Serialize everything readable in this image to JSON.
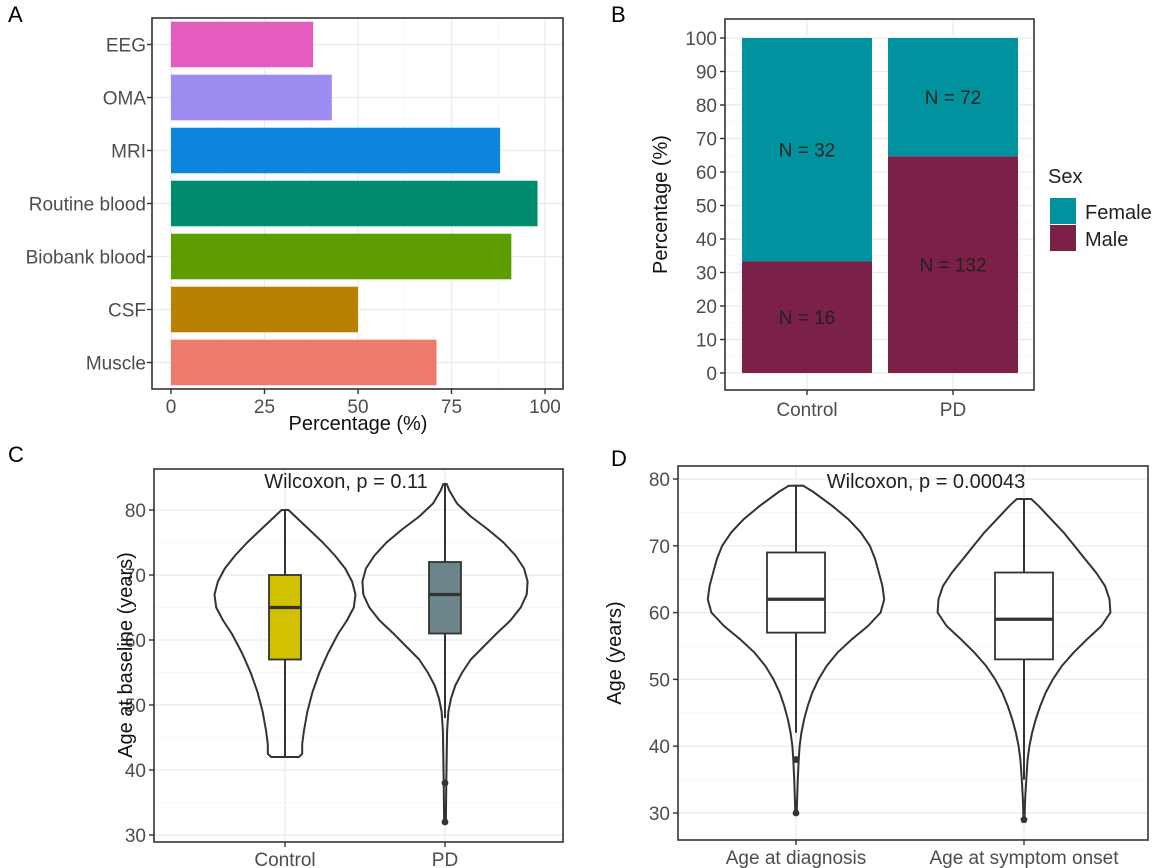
{
  "panels": {
    "A": {
      "letter": "A"
    },
    "B": {
      "letter": "B"
    },
    "C": {
      "letter": "C"
    },
    "D": {
      "letter": "D"
    }
  },
  "chart_data": [
    {
      "panel": "A",
      "type": "bar",
      "orientation": "horizontal",
      "categories": [
        "EEG",
        "OMA",
        "MRI",
        "Routine blood",
        "Biobank blood",
        "CSF",
        "Muscle"
      ],
      "values": [
        38,
        43,
        88,
        98,
        91,
        50,
        71
      ],
      "colors": [
        "#E55CBE",
        "#9E8BF2",
        "#0C85DD",
        "#008C6E",
        "#5E9D00",
        "#B88200",
        "#EE7A6C"
      ],
      "xlabel": "Percentage (%)",
      "ylabel": "",
      "xlim": [
        0,
        100
      ],
      "xticks": [
        0,
        25,
        50,
        75,
        100
      ],
      "grid": true
    },
    {
      "panel": "B",
      "type": "bar",
      "stacked": true,
      "categories": [
        "Control",
        "PD"
      ],
      "series": [
        {
          "name": "Male",
          "values": [
            33.3,
            64.7
          ],
          "color": "#7B2046",
          "labels": [
            "N = 16",
            "N = 132"
          ]
        },
        {
          "name": "Female",
          "values": [
            66.7,
            35.3
          ],
          "color": "#00929F",
          "labels": [
            "N = 32",
            "N = 72"
          ]
        }
      ],
      "xlabel": "",
      "ylabel": "Percentage (%)",
      "ylim": [
        0,
        100
      ],
      "yticks": [
        0,
        10,
        20,
        30,
        40,
        50,
        60,
        70,
        80,
        90,
        100
      ],
      "legend": {
        "title": "Sex",
        "entries": [
          "Female",
          "Male"
        ],
        "position": "right"
      },
      "grid": true
    },
    {
      "panel": "C",
      "type": "violin",
      "categories": [
        "Control",
        "PD"
      ],
      "groups": [
        {
          "name": "Control",
          "min": 42,
          "q1": 57,
          "median": 65,
          "q3": 70,
          "max": 80,
          "outliers": [],
          "fill": "#D2C100"
        },
        {
          "name": "PD",
          "min": 48,
          "q1": 61,
          "median": 67,
          "q3": 72,
          "max": 84,
          "outliers": [
            38,
            32
          ],
          "fill": "#6B858B"
        }
      ],
      "annotation": "Wilcoxon, p = 0.11",
      "xlabel": "",
      "ylabel": "Age at baseline (years)",
      "ylim": [
        30,
        85
      ],
      "yticks": [
        30,
        40,
        50,
        60,
        70,
        80
      ],
      "grid": true
    },
    {
      "panel": "D",
      "type": "violin",
      "categories": [
        "Age at diagnosis",
        "Age at symptom onset"
      ],
      "groups": [
        {
          "name": "Age at diagnosis",
          "min": 42,
          "q1": 57,
          "median": 62,
          "q3": 69,
          "max": 79,
          "outliers": [
            38,
            30
          ],
          "fill": "#ffffff"
        },
        {
          "name": "Age at symptom onset",
          "min": 35,
          "q1": 53,
          "median": 59,
          "q3": 66,
          "max": 77,
          "outliers": [
            29
          ],
          "fill": "#ffffff"
        }
      ],
      "annotation": "Wilcoxon, p = 0.00043",
      "xlabel": "",
      "ylabel": "Age (years)",
      "ylim": [
        28,
        81
      ],
      "yticks": [
        30,
        40,
        50,
        60,
        70,
        80
      ],
      "grid": true
    }
  ]
}
